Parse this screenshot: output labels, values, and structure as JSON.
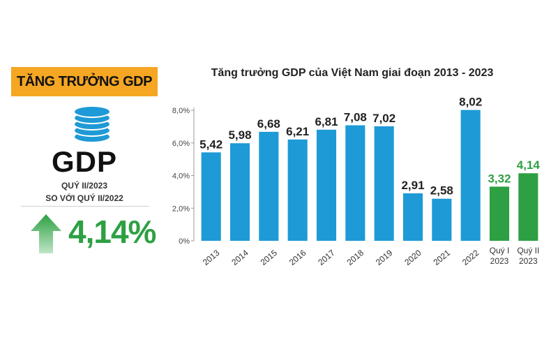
{
  "left_panel": {
    "title": "TĂNG TRƯỞNG GDP",
    "gdp_label": "GDP",
    "period": "QUÝ II/2023",
    "comparison": "SO VỚI QUÝ II/2022",
    "growth_value": "4,14%",
    "icons": [
      "coin-stack-icon",
      "up-arrow-icon"
    ]
  },
  "colors": {
    "accent_orange": "#f5a623",
    "bar_blue": "#1e9ad6",
    "bar_green": "#2ea043"
  },
  "chart_data": {
    "type": "bar",
    "title": "Tăng trưởng GDP của Việt Nam giai đoạn 2013 - 2023",
    "xlabel": "",
    "ylabel": "",
    "categories": [
      "2013",
      "2014",
      "2015",
      "2016",
      "2017",
      "2018",
      "2019",
      "2020",
      "2021",
      "2022",
      "Quý I 2023",
      "Quý II 2023"
    ],
    "category_lines": [
      [
        "2013"
      ],
      [
        "2014"
      ],
      [
        "2015"
      ],
      [
        "2016"
      ],
      [
        "2017"
      ],
      [
        "2018"
      ],
      [
        "2019"
      ],
      [
        "2020"
      ],
      [
        "2021"
      ],
      [
        "2022"
      ],
      [
        "Quý I",
        "2023"
      ],
      [
        "Quý II",
        "2023"
      ]
    ],
    "values": [
      5.42,
      5.98,
      6.68,
      6.21,
      6.81,
      7.08,
      7.02,
      2.91,
      2.58,
      8.02,
      3.32,
      4.14
    ],
    "value_labels": [
      "5,42",
      "5,98",
      "6,68",
      "6,21",
      "6,81",
      "7,08",
      "7,02",
      "2,91",
      "2,58",
      "8,02",
      "3,32",
      "4,14"
    ],
    "highlight": [
      false,
      false,
      false,
      false,
      false,
      false,
      false,
      false,
      false,
      false,
      true,
      true
    ],
    "ylim": [
      0,
      8
    ],
    "yticks": [
      0,
      2,
      4,
      6,
      8
    ],
    "ytick_labels": [
      "0%",
      "2,0%",
      "4,0%",
      "6,0%",
      "8,0%"
    ],
    "grid": false,
    "legend": "none"
  }
}
